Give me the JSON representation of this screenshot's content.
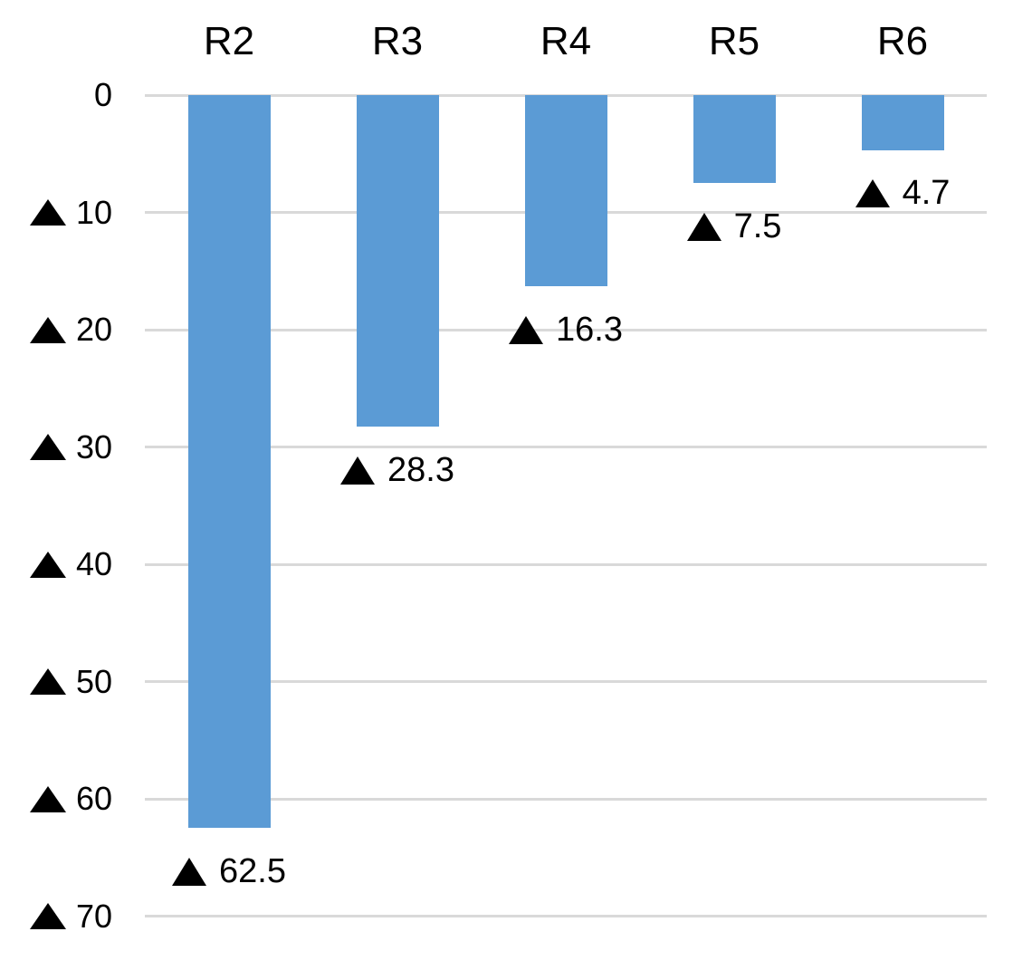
{
  "chart_data": {
    "type": "bar",
    "title": "",
    "xlabel": "",
    "ylabel": "",
    "legend": "none",
    "grid": true,
    "orientation": "vertical, bars extend downward from zero line",
    "negative_marker": "▲",
    "categories": [
      "R2",
      "R3",
      "R4",
      "R5",
      "R6"
    ],
    "values": [
      62.5,
      28.3,
      16.3,
      7.5,
      4.7
    ],
    "values_signed": [
      -62.5,
      -28.3,
      -16.3,
      -7.5,
      -4.7
    ],
    "data_labels": [
      "▲ 62.5",
      "▲ 28.3",
      "▲ 16.3",
      "▲ 7.5",
      "▲ 4.7"
    ],
    "y_axis": {
      "range": [
        0,
        70
      ],
      "direction": "down",
      "ticks": [
        0,
        10,
        20,
        30,
        40,
        50,
        60,
        70
      ],
      "tick_labels": [
        "0",
        "▲ 10",
        "▲ 20",
        "▲ 30",
        "▲ 40",
        "▲ 50",
        "▲ 60",
        "▲ 70"
      ]
    },
    "colors": {
      "bar": "#5B9BD5",
      "gridline": "#D9D9D9",
      "text": "#000000",
      "marker": "#000000",
      "background": "#FFFFFF"
    }
  }
}
